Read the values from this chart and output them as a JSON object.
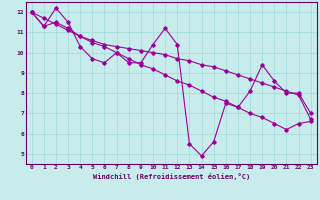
{
  "title": "",
  "xlabel": "Windchill (Refroidissement éolien,°C)",
  "ylabel": "",
  "bg_color": "#c8ecec",
  "line_color": "#990099",
  "grid_color": "#aadddd",
  "axis_color": "#660066",
  "xlim": [
    -0.5,
    23.5
  ],
  "ylim": [
    4.5,
    12.5
  ],
  "yticks": [
    5,
    6,
    7,
    8,
    9,
    10,
    11,
    12
  ],
  "xticks": [
    0,
    1,
    2,
    3,
    4,
    5,
    6,
    7,
    8,
    9,
    10,
    11,
    12,
    13,
    14,
    15,
    16,
    17,
    18,
    19,
    20,
    21,
    22,
    23
  ],
  "series1": {
    "x": [
      0,
      1,
      2,
      3,
      4,
      5,
      6,
      7,
      8,
      9,
      10,
      11,
      12,
      13,
      14,
      15,
      16,
      17,
      18,
      19,
      20,
      21,
      22,
      23
    ],
    "y": [
      12.0,
      11.3,
      12.2,
      11.5,
      10.3,
      9.7,
      9.5,
      10.0,
      9.5,
      9.5,
      10.4,
      11.2,
      10.4,
      5.5,
      4.9,
      5.6,
      7.5,
      7.3,
      8.1,
      9.4,
      8.6,
      8.0,
      8.0,
      7.0
    ]
  },
  "series2": {
    "x": [
      0,
      1,
      2,
      3,
      4,
      5,
      6,
      7,
      8,
      9,
      10,
      11,
      12,
      13,
      14,
      15,
      16,
      17,
      18,
      19,
      20,
      21,
      22,
      23
    ],
    "y": [
      12.0,
      11.3,
      11.5,
      11.2,
      10.8,
      10.6,
      10.4,
      10.3,
      10.2,
      10.1,
      10.0,
      9.9,
      9.7,
      9.6,
      9.4,
      9.3,
      9.1,
      8.9,
      8.7,
      8.5,
      8.3,
      8.1,
      7.9,
      6.7
    ]
  },
  "series3": {
    "x": [
      0,
      1,
      2,
      3,
      4,
      5,
      6,
      7,
      8,
      9,
      10,
      11,
      12,
      13,
      14,
      15,
      16,
      17,
      18,
      19,
      20,
      21,
      22,
      23
    ],
    "y": [
      12.0,
      11.7,
      11.4,
      11.1,
      10.8,
      10.5,
      10.3,
      10.0,
      9.7,
      9.4,
      9.2,
      8.9,
      8.6,
      8.4,
      8.1,
      7.8,
      7.6,
      7.3,
      7.0,
      6.8,
      6.5,
      6.2,
      6.5,
      6.6
    ]
  }
}
